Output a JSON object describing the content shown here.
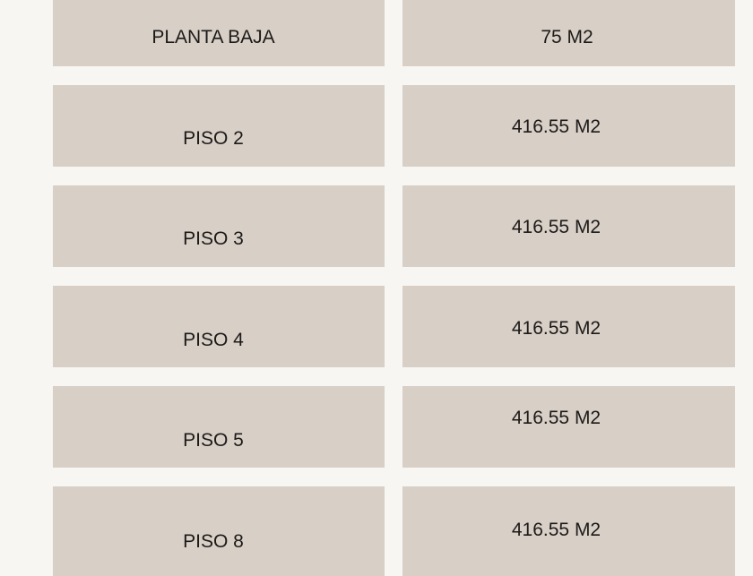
{
  "colors": {
    "background": "#f8f6f2",
    "cell": "#d8cfc7",
    "text": "#1c1a18"
  },
  "rows": [
    {
      "floor": "PLANTA BAJA",
      "area": "75 M2"
    },
    {
      "floor": "PISO 2",
      "area": "416.55 M2"
    },
    {
      "floor": "PISO 3",
      "area": "416.55 M2"
    },
    {
      "floor": "PISO 4",
      "area": "416.55 M2"
    },
    {
      "floor": "PISO 5",
      "area": "416.55 M2"
    },
    {
      "floor": "PISO 8",
      "area": "416.55 M2"
    }
  ]
}
